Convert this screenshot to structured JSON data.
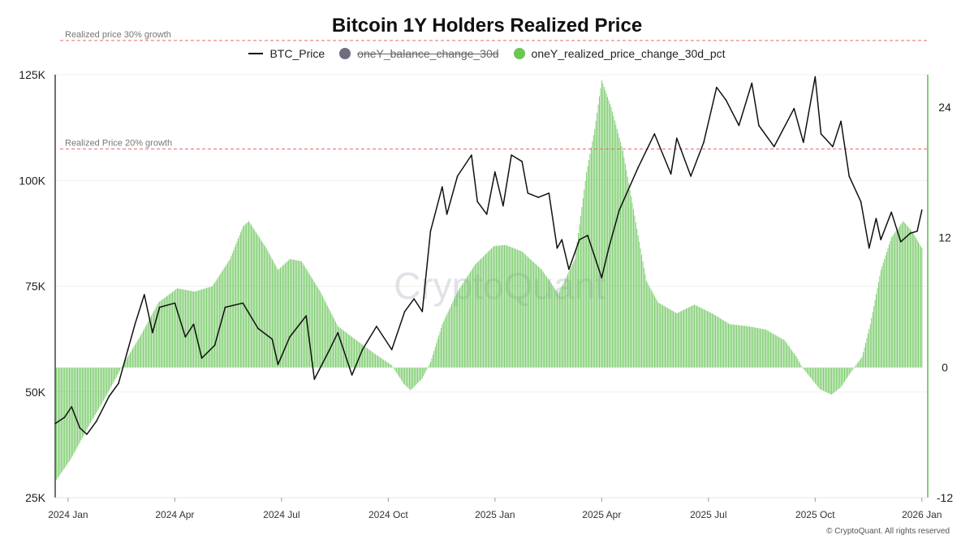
{
  "colors": {
    "price": "#111111",
    "bar": "#5cbf4a",
    "bar_stroke": "#7fd06e",
    "balance_dot": "#6e6e7e",
    "realized_dot": "#6cc655",
    "ref_line": "#e07070",
    "right_axis": "#5cbf4a",
    "grid": "#f0f0f0"
  },
  "watermark": "CryptoQuant",
  "copyright": "© CryptoQuant. All rights reserved",
  "chart_data": {
    "type": "line+bar",
    "title": "Bitcoin 1Y Holders Realized Price",
    "legend": [
      {
        "name": "BTC_Price",
        "kind": "line",
        "enabled": true
      },
      {
        "name": "oneY_balance_change_30d",
        "kind": "dot",
        "enabled": false
      },
      {
        "name": "oneY_realized_price_change_30d_pct",
        "kind": "dot",
        "enabled": true
      }
    ],
    "x_ticks": [
      "2024 Jan",
      "2024 Apr",
      "2024 Jul",
      "2024 Oct",
      "2025 Jan",
      "2025 Apr",
      "2025 Jul",
      "2025 Oct",
      "2026 Jan"
    ],
    "x_range": [
      "2023-12-28",
      "2026-01-10"
    ],
    "left_axis": {
      "ticks": [
        25000,
        50000,
        75000,
        100000,
        125000
      ],
      "labels": [
        "25K",
        "50K",
        "75K",
        "100K",
        "125K"
      ],
      "ylim": [
        25000,
        125000
      ]
    },
    "right_axis": {
      "ticks": [
        -12,
        0,
        12,
        24
      ],
      "labels": [
        "-12",
        "0",
        "12",
        "24"
      ],
      "ylim": [
        -12,
        27
      ]
    },
    "reference_lines": [
      {
        "label": "Realized price 30% growth",
        "value_pct": 30
      },
      {
        "label": "Realized Price 20% growth",
        "value_pct": 20
      }
    ],
    "series": [
      {
        "name": "BTC_Price",
        "type": "line",
        "points": [
          [
            "2023-12-28",
            42500
          ],
          [
            "2024-01-05",
            44000
          ],
          [
            "2024-01-11",
            46500
          ],
          [
            "2024-01-18",
            41500
          ],
          [
            "2024-01-24",
            40000
          ],
          [
            "2024-02-01",
            43000
          ],
          [
            "2024-02-12",
            49000
          ],
          [
            "2024-02-20",
            52000
          ],
          [
            "2024-02-28",
            60000
          ],
          [
            "2024-03-05",
            66000
          ],
          [
            "2024-03-13",
            73000
          ],
          [
            "2024-03-20",
            64000
          ],
          [
            "2024-03-26",
            70000
          ],
          [
            "2024-04-08",
            71000
          ],
          [
            "2024-04-17",
            63000
          ],
          [
            "2024-04-24",
            66000
          ],
          [
            "2024-05-01",
            58000
          ],
          [
            "2024-05-12",
            61000
          ],
          [
            "2024-05-21",
            70000
          ],
          [
            "2024-06-05",
            71000
          ],
          [
            "2024-06-18",
            65000
          ],
          [
            "2024-06-30",
            62500
          ],
          [
            "2024-07-05",
            56500
          ],
          [
            "2024-07-15",
            63000
          ],
          [
            "2024-07-29",
            68000
          ],
          [
            "2024-08-05",
            53000
          ],
          [
            "2024-08-18",
            60000
          ],
          [
            "2024-08-25",
            64000
          ],
          [
            "2024-09-06",
            54000
          ],
          [
            "2024-09-15",
            60000
          ],
          [
            "2024-09-27",
            65500
          ],
          [
            "2024-10-10",
            60000
          ],
          [
            "2024-10-21",
            69000
          ],
          [
            "2024-10-29",
            72000
          ],
          [
            "2024-11-05",
            69000
          ],
          [
            "2024-11-12",
            88000
          ],
          [
            "2024-11-22",
            98500
          ],
          [
            "2024-11-26",
            92000
          ],
          [
            "2024-12-05",
            101000
          ],
          [
            "2024-12-17",
            106000
          ],
          [
            "2024-12-22",
            95000
          ],
          [
            "2024-12-30",
            92000
          ],
          [
            "2025-01-06",
            102000
          ],
          [
            "2025-01-13",
            94000
          ],
          [
            "2025-01-20",
            106000
          ],
          [
            "2025-01-29",
            104500
          ],
          [
            "2025-02-03",
            97000
          ],
          [
            "2025-02-12",
            96000
          ],
          [
            "2025-02-21",
            97000
          ],
          [
            "2025-02-28",
            84000
          ],
          [
            "2025-03-04",
            86000
          ],
          [
            "2025-03-10",
            79000
          ],
          [
            "2025-03-19",
            86000
          ],
          [
            "2025-03-26",
            87000
          ],
          [
            "2025-04-07",
            77000
          ],
          [
            "2025-04-13",
            84000
          ],
          [
            "2025-04-22",
            93000
          ],
          [
            "2025-05-08",
            103000
          ],
          [
            "2025-05-22",
            111000
          ],
          [
            "2025-06-05",
            101500
          ],
          [
            "2025-06-10",
            110000
          ],
          [
            "2025-06-22",
            101000
          ],
          [
            "2025-07-03",
            109000
          ],
          [
            "2025-07-14",
            122000
          ],
          [
            "2025-07-22",
            119000
          ],
          [
            "2025-08-02",
            113000
          ],
          [
            "2025-08-13",
            123000
          ],
          [
            "2025-08-19",
            113000
          ],
          [
            "2025-09-01",
            108000
          ],
          [
            "2025-09-18",
            117000
          ],
          [
            "2025-09-26",
            109000
          ],
          [
            "2025-10-06",
            124500
          ],
          [
            "2025-10-11",
            111000
          ],
          [
            "2025-10-21",
            108000
          ],
          [
            "2025-10-28",
            114000
          ],
          [
            "2025-11-04",
            101000
          ],
          [
            "2025-11-14",
            95000
          ],
          [
            "2025-11-21",
            84000
          ],
          [
            "2025-11-27",
            91000
          ],
          [
            "2025-12-01",
            86000
          ],
          [
            "2025-12-10",
            92500
          ],
          [
            "2025-12-18",
            85500
          ],
          [
            "2025-12-26",
            87500
          ],
          [
            "2026-01-01",
            88000
          ],
          [
            "2026-01-05",
            93000
          ]
        ]
      },
      {
        "name": "oneY_realized_price_change_30d_pct",
        "type": "bar",
        "points": [
          [
            "2023-12-28",
            -10.5
          ],
          [
            "2024-01-10",
            -8.5
          ],
          [
            "2024-01-25",
            -5.5
          ],
          [
            "2024-02-10",
            -2.5
          ],
          [
            "2024-02-25",
            0.5
          ],
          [
            "2024-03-10",
            3
          ],
          [
            "2024-03-25",
            6
          ],
          [
            "2024-04-10",
            7.3
          ],
          [
            "2024-04-25",
            7
          ],
          [
            "2024-05-10",
            7.5
          ],
          [
            "2024-05-25",
            10
          ],
          [
            "2024-06-05",
            13
          ],
          [
            "2024-06-10",
            13.5
          ],
          [
            "2024-06-25",
            11
          ],
          [
            "2024-07-05",
            9
          ],
          [
            "2024-07-15",
            10
          ],
          [
            "2024-07-25",
            9.8
          ],
          [
            "2024-08-10",
            7
          ],
          [
            "2024-08-25",
            3.8
          ],
          [
            "2024-09-10",
            2.5
          ],
          [
            "2024-09-25",
            1.3
          ],
          [
            "2024-10-10",
            0.2
          ],
          [
            "2024-10-20",
            -1.5
          ],
          [
            "2024-10-26",
            -2.1
          ],
          [
            "2024-11-05",
            -1
          ],
          [
            "2024-11-12",
            0.5
          ],
          [
            "2024-11-22",
            4
          ],
          [
            "2024-12-05",
            7
          ],
          [
            "2024-12-20",
            9.5
          ],
          [
            "2025-01-05",
            11.2
          ],
          [
            "2025-01-15",
            11.3
          ],
          [
            "2025-01-29",
            10.7
          ],
          [
            "2025-02-15",
            9
          ],
          [
            "2025-03-01",
            6.8
          ],
          [
            "2025-03-15",
            10
          ],
          [
            "2025-03-25",
            18
          ],
          [
            "2025-04-01",
            22
          ],
          [
            "2025-04-07",
            26.5
          ],
          [
            "2025-04-15",
            24
          ],
          [
            "2025-04-25",
            20
          ],
          [
            "2025-05-05",
            14
          ],
          [
            "2025-05-15",
            8
          ],
          [
            "2025-05-25",
            6
          ],
          [
            "2025-06-10",
            5
          ],
          [
            "2025-06-25",
            5.8
          ],
          [
            "2025-07-10",
            5
          ],
          [
            "2025-07-25",
            4
          ],
          [
            "2025-08-10",
            3.8
          ],
          [
            "2025-08-25",
            3.5
          ],
          [
            "2025-09-10",
            2.5
          ],
          [
            "2025-09-20",
            1
          ],
          [
            "2025-09-25",
            0
          ],
          [
            "2025-10-10",
            -2
          ],
          [
            "2025-10-20",
            -2.5
          ],
          [
            "2025-10-28",
            -1.8
          ],
          [
            "2025-11-05",
            -0.5
          ],
          [
            "2025-11-15",
            1
          ],
          [
            "2025-11-22",
            4
          ],
          [
            "2025-12-01",
            9
          ],
          [
            "2025-12-10",
            12
          ],
          [
            "2025-12-20",
            13.5
          ],
          [
            "2025-12-28",
            12.5
          ],
          [
            "2026-01-05",
            11
          ]
        ]
      }
    ]
  }
}
